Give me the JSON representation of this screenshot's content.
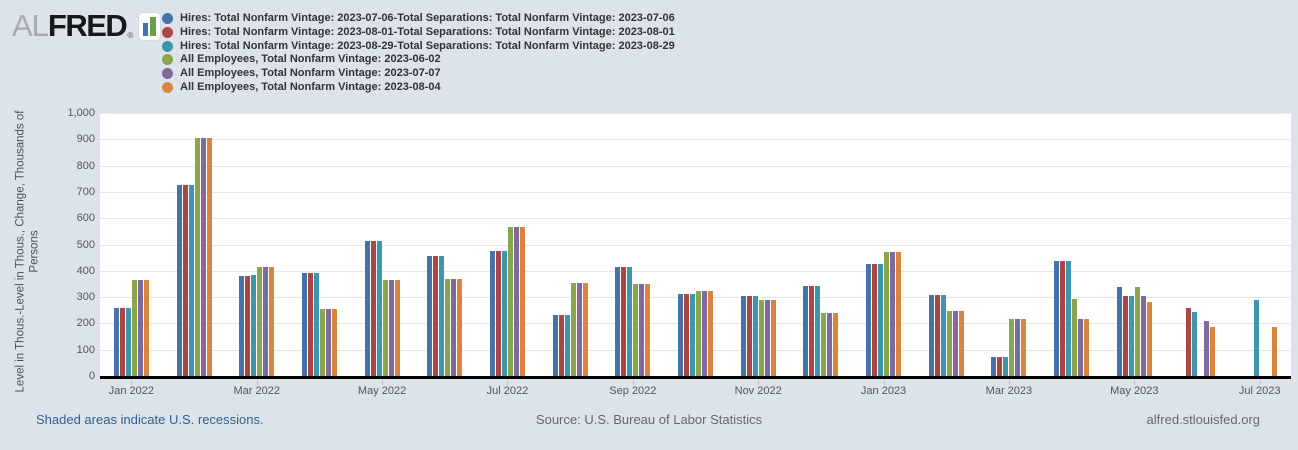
{
  "logo": {
    "al": "AL",
    "fred": "FRED",
    "registered": "®"
  },
  "chart_data": {
    "type": "bar",
    "title": "",
    "y_axis_title": "Level in Thous.-Level in Thous., Change, Thousands of Persons",
    "y_axis_title_lines": [
      "Level in Thous.-Level in Thous., Change, Thousands of",
      "Persons"
    ],
    "ylim": [
      0,
      1000
    ],
    "ytick_values": [
      0,
      100,
      200,
      300,
      400,
      500,
      600,
      700,
      800,
      900,
      1000
    ],
    "ytick_labels": [
      "0",
      "100",
      "200",
      "300",
      "400",
      "500",
      "600",
      "700",
      "800",
      "900",
      "1,000"
    ],
    "grid": "horizontal",
    "legend_position": "top-left",
    "categories": [
      "Jan 2022",
      "Feb 2022",
      "Mar 2022",
      "Apr 2022",
      "May 2022",
      "Jun 2022",
      "Jul 2022",
      "Aug 2022",
      "Sep 2022",
      "Oct 2022",
      "Nov 2022",
      "Dec 2022",
      "Jan 2023",
      "Feb 2023",
      "Mar 2023",
      "Apr 2023",
      "May 2023",
      "Jun 2023",
      "Jul 2023"
    ],
    "xtick_positions": [
      0,
      2,
      4,
      6,
      8,
      10,
      12,
      14,
      16,
      18
    ],
    "xtick_labels": [
      "Jan 2022",
      "Mar 2022",
      "May 2022",
      "Jul 2022",
      "Sep 2022",
      "Nov 2022",
      "Jan 2023",
      "Mar 2023",
      "May 2023",
      "Jul 2023"
    ],
    "series": [
      {
        "name": "Hires: Total Nonfarm Vintage: 2023-07-06-Total Separations: Total Nonfarm Vintage: 2023-07-06",
        "color": "#4572A7",
        "values": [
          260,
          728,
          380,
          392,
          515,
          455,
          476,
          232,
          413,
          313,
          305,
          342,
          426,
          307,
          72,
          438,
          338,
          null,
          null
        ]
      },
      {
        "name": "Hires: Total Nonfarm Vintage: 2023-08-01-Total Separations: Total Nonfarm Vintage: 2023-08-01",
        "color": "#AA4643",
        "values": [
          260,
          728,
          380,
          392,
          515,
          455,
          476,
          232,
          413,
          313,
          305,
          342,
          426,
          307,
          72,
          438,
          303,
          260,
          null
        ]
      },
      {
        "name": "Hires: Total Nonfarm Vintage: 2023-08-29-Total Separations: Total Nonfarm Vintage: 2023-08-29",
        "color": "#3D96AE",
        "values": [
          260,
          728,
          384,
          392,
          515,
          455,
          476,
          232,
          413,
          313,
          305,
          342,
          426,
          307,
          72,
          438,
          303,
          245,
          290
        ]
      },
      {
        "name": "All Employees, Total Nonfarm Vintage: 2023-06-02",
        "color": "#89A54E",
        "values": [
          364,
          904,
          414,
          254,
          364,
          370,
          568,
          352,
          350,
          324,
          290,
          239,
          472,
          248,
          217,
          294,
          339,
          null,
          null
        ]
      },
      {
        "name": "All Employees, Total Nonfarm Vintage: 2023-07-07",
        "color": "#80699B",
        "values": [
          364,
          904,
          414,
          254,
          364,
          370,
          568,
          352,
          350,
          324,
          290,
          239,
          472,
          248,
          217,
          217,
          306,
          209,
          null
        ]
      },
      {
        "name": "All Employees, Total Nonfarm Vintage: 2023-08-04",
        "color": "#DB843D",
        "values": [
          364,
          904,
          414,
          254,
          364,
          370,
          568,
          352,
          350,
          324,
          290,
          239,
          472,
          248,
          217,
          217,
          281,
          185,
          187
        ]
      }
    ]
  },
  "footer": {
    "recessions_note": "Shaded areas indicate U.S. recessions.",
    "source": "Source: U.S. Bureau of Labor Statistics",
    "site": "alfred.stlouisfed.org"
  }
}
